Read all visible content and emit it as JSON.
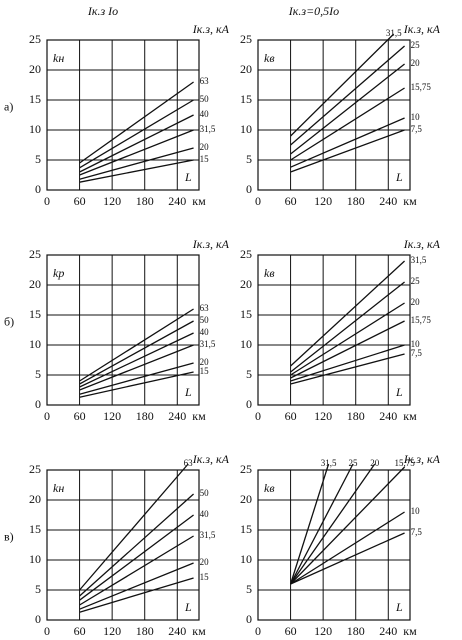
{
  "chart_data": [
    {
      "type": "line",
      "title": "Iк.з  Iо",
      "row_label": "а)",
      "y_label": "kн",
      "x_label": "км",
      "corner_label": "L",
      "series_label_title": "Iк.з, кА",
      "xlim": [
        0,
        280
      ],
      "ylim": [
        0,
        25
      ],
      "xticks": [
        0,
        60,
        120,
        180,
        240
      ],
      "yticks": [
        0,
        5,
        10,
        15,
        20,
        25
      ],
      "grid": true,
      "series": [
        {
          "name": "63",
          "color": "#111111",
          "x": [
            60,
            270
          ],
          "values": [
            4.5,
            18
          ]
        },
        {
          "name": "50",
          "color": "#111111",
          "x": [
            60,
            270
          ],
          "values": [
            3.7,
            15
          ]
        },
        {
          "name": "40",
          "color": "#111111",
          "x": [
            60,
            270
          ],
          "values": [
            3,
            12.5
          ]
        },
        {
          "name": "31,5",
          "color": "#111111",
          "x": [
            60,
            270
          ],
          "values": [
            2.5,
            10
          ]
        },
        {
          "name": "20",
          "color": "#111111",
          "x": [
            60,
            270
          ],
          "values": [
            1.8,
            7
          ]
        },
        {
          "name": "15",
          "color": "#111111",
          "x": [
            60,
            270
          ],
          "values": [
            1.3,
            5
          ]
        }
      ]
    },
    {
      "type": "line",
      "title": "Iк.з=0,5Iо",
      "y_label": "kв",
      "x_label": "км",
      "corner_label": "L",
      "series_label_title": "Iк.з, кА",
      "xlim": [
        0,
        280
      ],
      "ylim": [
        0,
        25
      ],
      "xticks": [
        0,
        60,
        120,
        180,
        240
      ],
      "yticks": [
        0,
        5,
        10,
        15,
        20,
        25
      ],
      "grid": true,
      "series": [
        {
          "name": "31,5",
          "color": "#111111",
          "x": [
            60,
            250
          ],
          "values": [
            9,
            26
          ]
        },
        {
          "name": "25",
          "color": "#111111",
          "x": [
            60,
            270
          ],
          "values": [
            7.5,
            24
          ]
        },
        {
          "name": "20",
          "color": "#111111",
          "x": [
            60,
            270
          ],
          "values": [
            6,
            21
          ]
        },
        {
          "name": "15,75",
          "color": "#111111",
          "x": [
            60,
            270
          ],
          "values": [
            5,
            17
          ]
        },
        {
          "name": "10",
          "color": "#111111",
          "x": [
            60,
            270
          ],
          "values": [
            3.8,
            12
          ]
        },
        {
          "name": "7,5",
          "color": "#111111",
          "x": [
            60,
            270
          ],
          "values": [
            3,
            10
          ]
        }
      ]
    },
    {
      "type": "line",
      "row_label": "б)",
      "y_label": "kр",
      "x_label": "км",
      "corner_label": "L",
      "series_label_title": "Iк.з, кА",
      "xlim": [
        0,
        280
      ],
      "ylim": [
        0,
        25
      ],
      "xticks": [
        0,
        60,
        120,
        180,
        240
      ],
      "yticks": [
        0,
        5,
        10,
        15,
        20,
        25
      ],
      "grid": true,
      "series": [
        {
          "name": "63",
          "color": "#111111",
          "x": [
            60,
            270
          ],
          "values": [
            4,
            16
          ]
        },
        {
          "name": "50",
          "color": "#111111",
          "x": [
            60,
            270
          ],
          "values": [
            3.5,
            14
          ]
        },
        {
          "name": "40",
          "color": "#111111",
          "x": [
            60,
            270
          ],
          "values": [
            3,
            12
          ]
        },
        {
          "name": "31,5",
          "color": "#111111",
          "x": [
            60,
            270
          ],
          "values": [
            2.5,
            10
          ]
        },
        {
          "name": "20",
          "color": "#111111",
          "x": [
            60,
            270
          ],
          "values": [
            1.8,
            7
          ]
        },
        {
          "name": "15",
          "color": "#111111",
          "x": [
            60,
            270
          ],
          "values": [
            1.3,
            5.5
          ]
        }
      ]
    },
    {
      "type": "line",
      "y_label": "kв",
      "x_label": "км",
      "corner_label": "L",
      "series_label_title": "Iк.з, кА",
      "xlim": [
        0,
        280
      ],
      "ylim": [
        0,
        25
      ],
      "xticks": [
        0,
        60,
        120,
        180,
        240
      ],
      "yticks": [
        0,
        5,
        10,
        15,
        20,
        25
      ],
      "grid": true,
      "series": [
        {
          "name": "31,5",
          "color": "#111111",
          "x": [
            60,
            270
          ],
          "values": [
            6.5,
            24
          ]
        },
        {
          "name": "25",
          "color": "#111111",
          "x": [
            60,
            270
          ],
          "values": [
            5.5,
            20.5
          ]
        },
        {
          "name": "20",
          "color": "#111111",
          "x": [
            60,
            270
          ],
          "values": [
            5,
            17
          ]
        },
        {
          "name": "15,75",
          "color": "#111111",
          "x": [
            60,
            270
          ],
          "values": [
            4.5,
            14
          ]
        },
        {
          "name": "10",
          "color": "#111111",
          "x": [
            60,
            270
          ],
          "values": [
            4,
            10
          ]
        },
        {
          "name": "7,5",
          "color": "#111111",
          "x": [
            60,
            270
          ],
          "values": [
            3.5,
            8.5
          ]
        }
      ]
    },
    {
      "type": "line",
      "row_label": "в)",
      "y_label": "kн",
      "x_label": "км",
      "corner_label": "L",
      "series_label_title": "Iк.з, кА",
      "xlim": [
        0,
        280
      ],
      "ylim": [
        0,
        25
      ],
      "xticks": [
        0,
        60,
        120,
        180,
        240
      ],
      "yticks": [
        0,
        5,
        10,
        15,
        20,
        25
      ],
      "grid": true,
      "series": [
        {
          "name": "63",
          "color": "#111111",
          "x": [
            60,
            260
          ],
          "values": [
            5,
            26
          ]
        },
        {
          "name": "50",
          "color": "#111111",
          "x": [
            60,
            270
          ],
          "values": [
            4,
            21
          ]
        },
        {
          "name": "40",
          "color": "#111111",
          "x": [
            60,
            270
          ],
          "values": [
            3.3,
            17.5
          ]
        },
        {
          "name": "31,5",
          "color": "#111111",
          "x": [
            60,
            270
          ],
          "values": [
            2.5,
            14
          ]
        },
        {
          "name": "20",
          "color": "#111111",
          "x": [
            60,
            270
          ],
          "values": [
            1.8,
            9.5
          ]
        },
        {
          "name": "15",
          "color": "#111111",
          "x": [
            60,
            270
          ],
          "values": [
            1.3,
            7
          ]
        }
      ]
    },
    {
      "type": "line",
      "y_label": "kв",
      "x_label": "км",
      "corner_label": "L",
      "series_label_title": "Iк.з, кА",
      "xlim": [
        0,
        280
      ],
      "ylim": [
        0,
        25
      ],
      "xticks": [
        0,
        60,
        120,
        180,
        240
      ],
      "yticks": [
        0,
        5,
        10,
        15,
        20,
        25
      ],
      "grid": true,
      "series": [
        {
          "name": "31,5",
          "color": "#111111",
          "x": [
            60,
            130
          ],
          "values": [
            6,
            26
          ]
        },
        {
          "name": "25",
          "color": "#111111",
          "x": [
            60,
            175
          ],
          "values": [
            6,
            26
          ]
        },
        {
          "name": "20",
          "color": "#111111",
          "x": [
            60,
            215
          ],
          "values": [
            6,
            26
          ]
        },
        {
          "name": "15,75",
          "color": "#111111",
          "x": [
            60,
            270
          ],
          "values": [
            6,
            25.5
          ]
        },
        {
          "name": "10",
          "color": "#111111",
          "x": [
            60,
            270
          ],
          "values": [
            6,
            18
          ]
        },
        {
          "name": "7,5",
          "color": "#111111",
          "x": [
            60,
            270
          ],
          "values": [
            6,
            14.5
          ]
        }
      ]
    }
  ]
}
